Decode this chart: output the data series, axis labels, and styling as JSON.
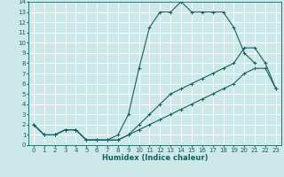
{
  "title": "",
  "xlabel": "Humidex (Indice chaleur)",
  "ylabel": "",
  "xlim": [
    -0.5,
    23.5
  ],
  "ylim": [
    0,
    14
  ],
  "xticks": [
    0,
    1,
    2,
    3,
    4,
    5,
    6,
    7,
    8,
    9,
    10,
    11,
    12,
    13,
    14,
    15,
    16,
    17,
    18,
    19,
    20,
    21,
    22,
    23
  ],
  "yticks": [
    0,
    1,
    2,
    3,
    4,
    5,
    6,
    7,
    8,
    9,
    10,
    11,
    12,
    13,
    14
  ],
  "bg_color": "#cce8e8",
  "line_color": "#1a6060",
  "grid_color": "#ffffff",
  "curve1_x": [
    0,
    1,
    2,
    3,
    4,
    5,
    6,
    7,
    8,
    9,
    10,
    11,
    12,
    13,
    14,
    15,
    16,
    17,
    18,
    19,
    20,
    21
  ],
  "curve1_y": [
    2,
    1,
    1,
    1.5,
    1.5,
    0.5,
    0.5,
    0.5,
    1,
    3,
    7.5,
    11.5,
    13,
    13,
    14,
    13,
    13,
    13,
    13,
    11.5,
    9,
    8
  ],
  "curve2_x": [
    0,
    1,
    2,
    3,
    4,
    5,
    6,
    7,
    8,
    9,
    10,
    11,
    12,
    13,
    14,
    15,
    16,
    17,
    18,
    19,
    20,
    21,
    22,
    23
  ],
  "curve2_y": [
    2,
    1,
    1,
    1.5,
    1.5,
    0.5,
    0.5,
    0.5,
    0.5,
    1,
    2,
    3,
    4,
    5,
    5.5,
    6,
    6.5,
    7,
    7.5,
    8,
    9.5,
    9.5,
    8,
    5.5
  ],
  "curve3_x": [
    0,
    1,
    2,
    3,
    4,
    5,
    6,
    7,
    8,
    9,
    10,
    11,
    12,
    13,
    14,
    15,
    16,
    17,
    18,
    19,
    20,
    21,
    22,
    23
  ],
  "curve3_y": [
    2,
    1,
    1,
    1.5,
    1.5,
    0.5,
    0.5,
    0.5,
    0.5,
    1,
    1.5,
    2,
    2.5,
    3,
    3.5,
    4,
    4.5,
    5,
    5.5,
    6,
    7,
    7.5,
    7.5,
    5.5
  ],
  "tick_fontsize": 5.0,
  "xlabel_fontsize": 6.0,
  "marker_size": 2.5,
  "linewidth": 0.8
}
